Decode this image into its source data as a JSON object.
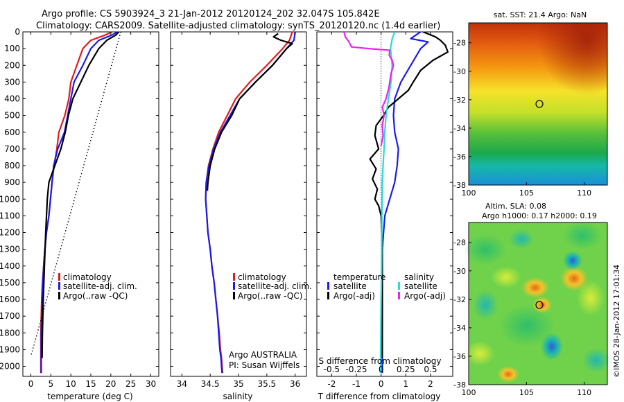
{
  "header": {
    "line1": "Argo profile: CS 5903924_3 21-Jan-2012 20120124_202 32.047S 105.842E",
    "line2": "Climatology: CARS2009. Satellite-adjusted climatology: synTS_20120120.nc (1.4d earlier)"
  },
  "colors": {
    "red": "#e31a1c",
    "blue": "#1a1aee",
    "black": "#000000",
    "cyan": "#22dddd",
    "magenta": "#ee22ee"
  },
  "chart_data": [
    {
      "id": "temperature",
      "type": "line",
      "xlabel": "temperature (deg C)",
      "xlim": [
        -2,
        32
      ],
      "ylim": [
        2060,
        0
      ],
      "xticks": [
        0,
        5,
        10,
        15,
        20,
        25,
        30
      ],
      "yticks": [
        0,
        100,
        200,
        300,
        400,
        500,
        600,
        700,
        800,
        900,
        1000,
        1100,
        1200,
        1300,
        1400,
        1500,
        1600,
        1700,
        1800,
        1900,
        2000
      ],
      "legend": {
        "items": [
          "climatology",
          "satellite-adj. clim.",
          "Argo(..raw -QC)"
        ],
        "colors": [
          "red",
          "blue",
          "black"
        ]
      },
      "series": [
        {
          "name": "climatology",
          "color": "red",
          "x": [
            20.3,
            18.5,
            15,
            13,
            11.5,
            10,
            9.5,
            8.5,
            7,
            6.5,
            5.8,
            5.3,
            4.9,
            4.5,
            3.9,
            3.5,
            3.2,
            2.9,
            2.7,
            2.6,
            2.5,
            2.5,
            2.5
          ],
          "y": [
            0,
            20,
            50,
            100,
            200,
            300,
            400,
            500,
            600,
            700,
            800,
            900,
            1000,
            1100,
            1200,
            1300,
            1400,
            1500,
            1600,
            1700,
            1800,
            1900,
            2040
          ]
        },
        {
          "name": "satellite-adj. clim.",
          "color": "blue",
          "x": [
            21.7,
            20.2,
            17,
            15,
            13,
            10.8,
            10,
            9.2,
            8.4,
            6.7,
            5.7,
            5.3,
            4.9,
            4.5,
            3.9,
            3.5,
            3.2,
            3,
            2.8,
            2.7,
            2.6,
            2.6,
            2.6
          ],
          "y": [
            0,
            20,
            50,
            100,
            200,
            300,
            400,
            500,
            600,
            700,
            800,
            900,
            1000,
            1100,
            1200,
            1300,
            1400,
            1500,
            1600,
            1700,
            1800,
            1900,
            2040
          ]
        },
        {
          "name": "Argo(..raw -QC)",
          "color": "black",
          "x": [
            22,
            21.2,
            19,
            17,
            14.5,
            12.5,
            10.5,
            9.4,
            8.6,
            7.5,
            6,
            4.5,
            4.1,
            3.7,
            3.4,
            3.1,
            2.9,
            2.8
          ],
          "y": [
            0,
            20,
            50,
            100,
            200,
            300,
            400,
            500,
            600,
            700,
            800,
            900,
            1000,
            1200,
            1400,
            1600,
            1800,
            1950
          ]
        },
        {
          "name": "",
          "color": "black",
          "dash": true,
          "x": [
            22.5,
            0
          ],
          "y": [
            0,
            1940
          ]
        }
      ]
    },
    {
      "id": "salinity",
      "type": "line",
      "xlabel": "salinity",
      "xlim": [
        33.8,
        36.2
      ],
      "ylim": [
        2060,
        0
      ],
      "xticks": [
        34,
        34.5,
        35,
        35.5,
        36
      ],
      "legend": {
        "items": [
          "climatology",
          "satellite-adj. clim.",
          "Argo(..raw -QC)"
        ],
        "colors": [
          "red",
          "blue",
          "black"
        ]
      },
      "note": [
        "Argo AUSTRALIA",
        "PI: Susan Wijffels"
      ],
      "series": [
        {
          "name": "climatology",
          "color": "red",
          "x": [
            35.95,
            35.9,
            35.78,
            35.5,
            35.2,
            34.95,
            34.8,
            34.65,
            34.55,
            34.47,
            34.43,
            34.42,
            34.44,
            34.46,
            34.5,
            34.53,
            34.57,
            34.6,
            34.63,
            34.66,
            34.68,
            34.7,
            34.71,
            34.72
          ],
          "y": [
            0,
            50,
            100,
            200,
            300,
            400,
            500,
            600,
            700,
            800,
            900,
            1000,
            1100,
            1200,
            1300,
            1400,
            1500,
            1600,
            1700,
            1800,
            1900,
            1950,
            2000,
            2040
          ]
        },
        {
          "name": "satellite-adj. clim.",
          "color": "blue",
          "x": [
            36,
            35.98,
            35.85,
            35.6,
            35.3,
            35.02,
            34.85,
            34.68,
            34.56,
            34.48,
            34.43,
            34.42,
            34.44,
            34.46,
            34.5,
            34.53,
            34.57,
            34.6,
            34.63,
            34.65,
            34.67,
            34.69,
            34.7,
            34.71
          ],
          "y": [
            0,
            50,
            100,
            200,
            300,
            400,
            500,
            600,
            700,
            800,
            900,
            1000,
            1100,
            1200,
            1300,
            1400,
            1500,
            1600,
            1700,
            1800,
            1900,
            1950,
            2000,
            2040
          ]
        },
        {
          "name": "Argo(..raw -QC)",
          "color": "black",
          "x": [
            35.7,
            35.62,
            35.75,
            35.95,
            35.85,
            35.6,
            35.3,
            35.02,
            34.88,
            34.7,
            34.58,
            34.5,
            34.46,
            34.45
          ],
          "y": [
            10,
            30,
            50,
            70,
            100,
            200,
            300,
            400,
            500,
            600,
            700,
            800,
            900,
            950
          ]
        }
      ]
    },
    {
      "id": "difference",
      "type": "line",
      "xlabel": "T difference from climatology",
      "top_label": "S difference from climatology",
      "xlim": [
        -2.6,
        2.9
      ],
      "ylim": [
        2060,
        0
      ],
      "xticks": [
        -2,
        -1,
        0,
        1,
        2
      ],
      "xticklabels": [
        "-2",
        "-1",
        "0",
        "1",
        "2"
      ],
      "sticks": [
        -0.5,
        -0.25,
        0,
        0.25,
        0.5
      ],
      "sticklabels": [
        "-0.5",
        "-0.25",
        "0",
        "0.25",
        "0.5"
      ],
      "legend": {
        "temperature_title": "temperature",
        "salinity_title": "salinity",
        "items": [
          "satellite",
          "Argo(-adj)",
          "satellite",
          "Argo(-adj)"
        ],
        "colors": [
          "blue",
          "black",
          "cyan",
          "magenta"
        ]
      },
      "series": [
        {
          "name": "satellite",
          "color": "blue",
          "x": [
            1.6,
            1.4,
            1.2,
            1.9,
            1.6,
            1.2,
            0.8,
            0.55,
            0.5,
            0.55,
            0.7,
            0.65,
            0.55,
            0.35,
            0.15,
            0.1,
            0.05,
            0.05,
            0.05,
            0.05,
            0.05,
            0.05
          ],
          "y": [
            0,
            20,
            40,
            60,
            100,
            200,
            300,
            400,
            500,
            600,
            700,
            800,
            900,
            1000,
            1100,
            1200,
            1300,
            1400,
            1500,
            1600,
            1800,
            2040
          ]
        },
        {
          "name": "Argo(-adj)",
          "color": "black",
          "x": [
            1.7,
            2.2,
            2.4,
            2.6,
            2.7,
            2.1,
            1.6,
            1.3,
            1.1,
            0.7,
            0.3,
            0.1,
            -0.2,
            -0.25,
            -0.1,
            -0.45,
            -0.2,
            -0.35,
            -0.15,
            -0.25,
            -0.1,
            0,
            0.05,
            0.05,
            0.05
          ],
          "y": [
            0,
            30,
            50,
            80,
            120,
            170,
            230,
            300,
            350,
            400,
            450,
            500,
            560,
            620,
            700,
            760,
            820,
            880,
            940,
            1000,
            1040,
            1100,
            1300,
            1600,
            1950
          ]
        },
        {
          "name": "satellite",
          "color": "cyan",
          "x": [
            0.55,
            0.45,
            0.38,
            0.45,
            0.4,
            0.3,
            0.2,
            0.15,
            0.12,
            0.08,
            0.05,
            0.04,
            0.03,
            0.03,
            0.02,
            0.0,
            -0.01,
            -0.02,
            -0.03
          ],
          "y": [
            0,
            40,
            100,
            200,
            300,
            400,
            500,
            600,
            700,
            800,
            900,
            1000,
            1100,
            1200,
            1400,
            1600,
            1800,
            2000,
            2040
          ]
        },
        {
          "name": "Argo(-adj)",
          "color": "magenta",
          "x": [
            -1.5,
            -1.45,
            -1.3,
            -1.2,
            -0.5,
            0.35,
            0.33,
            0.45,
            0.5,
            0.4,
            0.32,
            0.2,
            0.05,
            0.12,
            0.05,
            0.08,
            0.0
          ],
          "y": [
            0,
            30,
            60,
            90,
            100,
            110,
            140,
            170,
            200,
            250,
            330,
            400,
            450,
            500,
            560,
            620,
            680
          ]
        }
      ]
    }
  ],
  "maps": {
    "sst": {
      "title": "sat. SST: 21.4 Argo: NaN",
      "xticks": [
        "100",
        "105",
        "110"
      ],
      "yticks": [
        "-28",
        "-30",
        "-32",
        "-34",
        "-36",
        "-38"
      ],
      "float_marker": "circle"
    },
    "sla": {
      "title1": "Altim. SLA: 0.08",
      "title2": "Argo h1000: 0.17 h2000: 0.19",
      "xticks": [
        "100",
        "105",
        "110"
      ],
      "yticks": [
        "-28",
        "-30",
        "-32",
        "-34",
        "-36",
        "-38"
      ],
      "float_marker": "circle"
    }
  },
  "footer": {
    "stamp": "©IMOS 28-Jan-2012 17:01:34"
  }
}
